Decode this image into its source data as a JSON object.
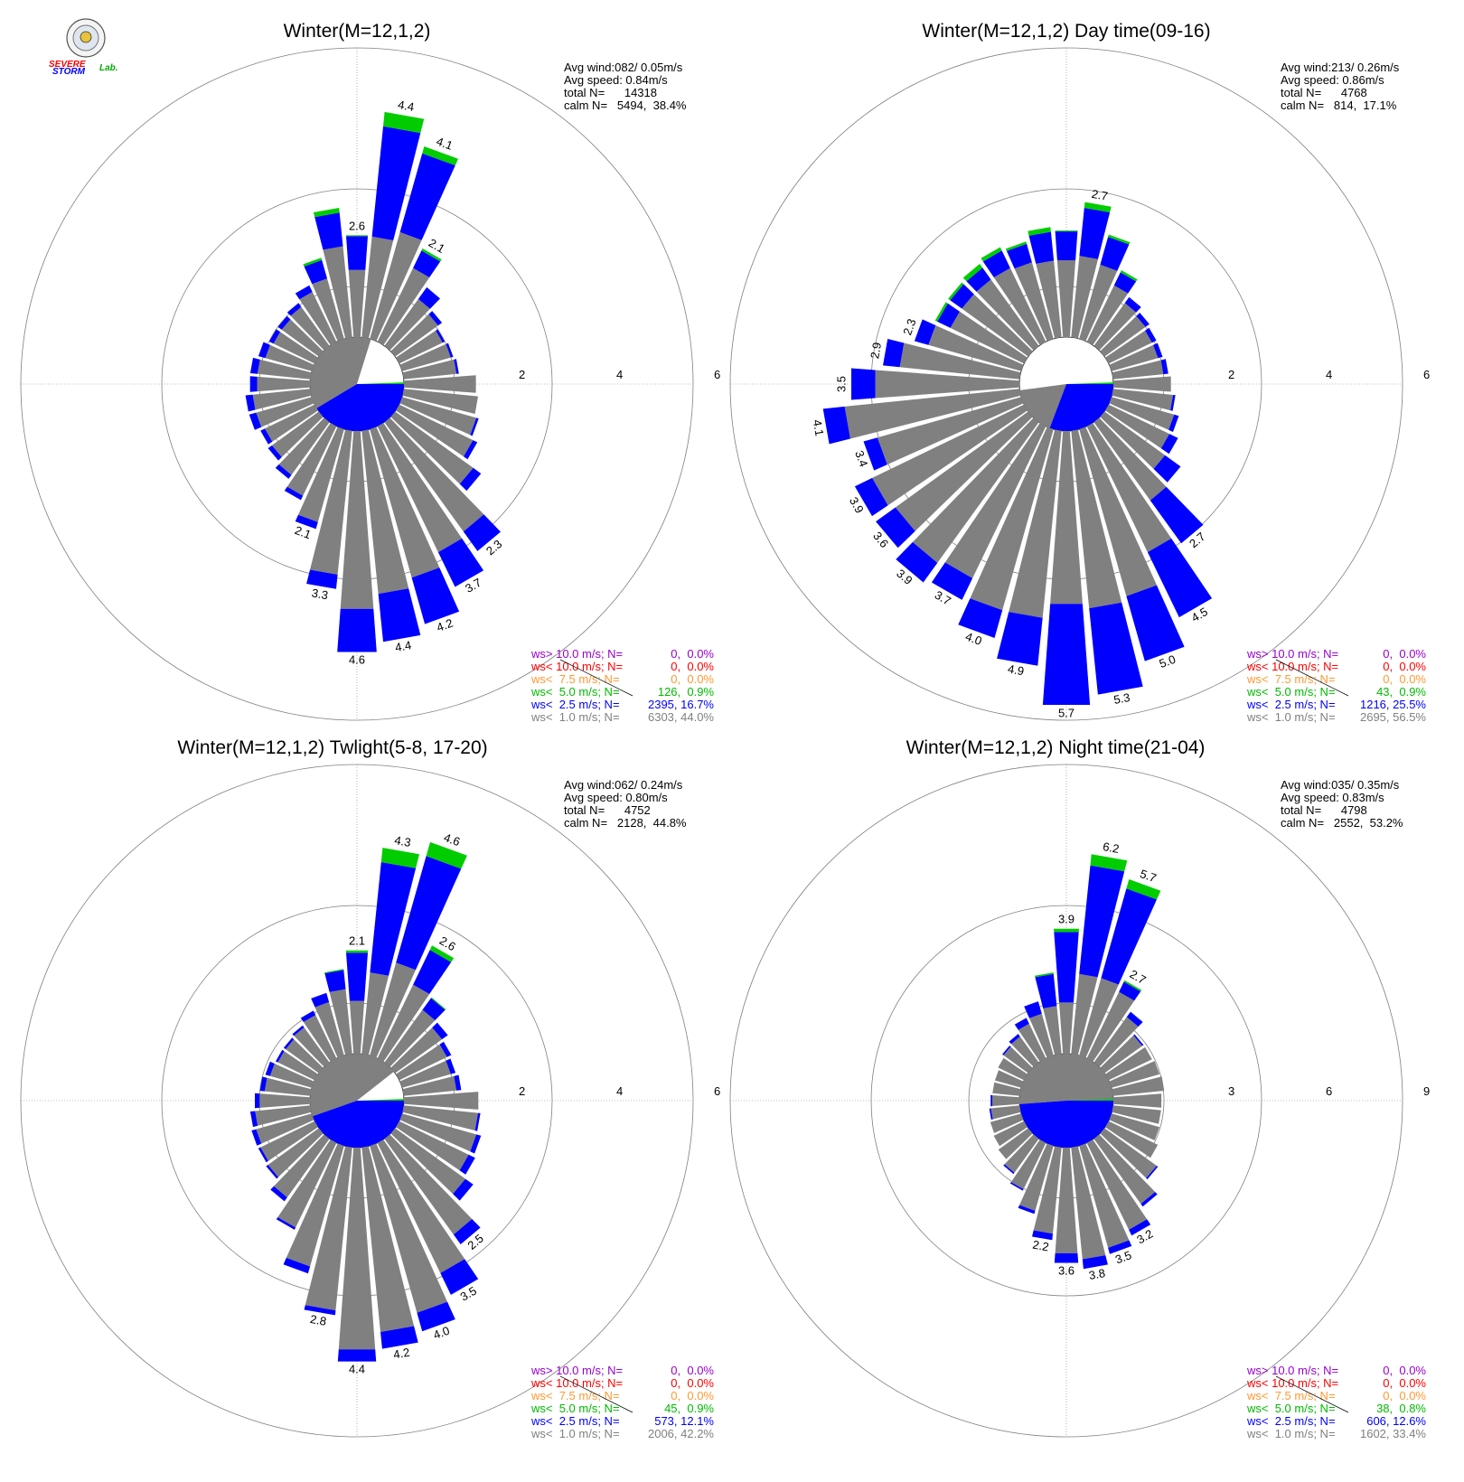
{
  "logo": {
    "text_a": "SEVERE",
    "text_b": "STORM",
    "text_c": "Lab."
  },
  "colors": {
    "gray": "#808080",
    "blue": "#0000ff",
    "green": "#00cc00",
    "orange": "#ff9933",
    "red": "#ff0000",
    "purple": "#9900cc",
    "grid": "#808080"
  },
  "legend_labels": [
    "ws> 10.0 m/s; N=",
    "ws< 10.0 m/s; N=",
    "ws<  7.5 m/s; N=",
    "ws<  5.0 m/s; N=",
    "ws<  2.5 m/s; N=",
    "ws<  1.0 m/s; N="
  ],
  "chart_data": [
    {
      "type": "wind-rose",
      "title": "Winter(M=12,1,2)",
      "stats": [
        "Avg wind:082/ 0.05m/s",
        "Avg speed: 0.84m/s",
        "total N=      14318",
        "calm N=   5494,  38.4%"
      ],
      "rings": [
        2,
        4,
        6
      ],
      "ring_labels": [
        "2",
        "4",
        "6"
      ],
      "calm_percent": 38.4,
      "legend_values": [
        "0,  0.0%",
        "0,  0.0%",
        "0,  0.0%",
        "126,  0.9%",
        "2395, 16.7%",
        "6303, 44.0%"
      ],
      "directions_deg": [
        0,
        10,
        20,
        30,
        40,
        50,
        60,
        70,
        80,
        90,
        100,
        110,
        120,
        130,
        140,
        150,
        160,
        170,
        180,
        190,
        200,
        210,
        220,
        230,
        240,
        250,
        260,
        270,
        280,
        290,
        300,
        310,
        320,
        330,
        340,
        350
      ],
      "bars": [
        {
          "g": 1.4,
          "b": 0.7,
          "gr": 0.02
        },
        {
          "g": 2.1,
          "b": 2.3,
          "gr": 0.3
        },
        {
          "g": 2.3,
          "b": 1.7,
          "gr": 0.15
        },
        {
          "g": 1.7,
          "b": 0.4,
          "gr": 0.05
        },
        {
          "g": 1.2,
          "b": 0.3,
          "gr": 0.0
        },
        {
          "g": 1.1,
          "b": 0.1,
          "gr": 0.0
        },
        {
          "g": 1.0,
          "b": 0.05,
          "gr": 0.0
        },
        {
          "g": 1.05,
          "b": 0.05,
          "gr": 0.0
        },
        {
          "g": 1.1,
          "b": 0.05,
          "gr": 0.0
        },
        {
          "g": 1.5,
          "b": 0.0,
          "gr": 0.0
        },
        {
          "g": 1.55,
          "b": 0.0,
          "gr": 0.0
        },
        {
          "g": 1.6,
          "b": 0.05,
          "gr": 0.0
        },
        {
          "g": 1.7,
          "b": 0.1,
          "gr": 0.0
        },
        {
          "g": 2.0,
          "b": 0.2,
          "gr": 0.0
        },
        {
          "g": 2.8,
          "b": 0.5,
          "gr": 0.0
        },
        {
          "g": 2.9,
          "b": 0.8,
          "gr": 0.0
        },
        {
          "g": 3.2,
          "b": 1.0,
          "gr": 0.0
        },
        {
          "g": 3.4,
          "b": 1.0,
          "gr": 0.0
        },
        {
          "g": 3.7,
          "b": 0.9,
          "gr": 0.0
        },
        {
          "g": 3.0,
          "b": 0.3,
          "gr": 0.0
        },
        {
          "g": 2.0,
          "b": 0.15,
          "gr": 0.0
        },
        {
          "g": 1.6,
          "b": 0.1,
          "gr": 0.0
        },
        {
          "g": 1.35,
          "b": 0.1,
          "gr": 0.0
        },
        {
          "g": 1.2,
          "b": 0.1,
          "gr": 0.0
        },
        {
          "g": 1.15,
          "b": 0.1,
          "gr": 0.0
        },
        {
          "g": 1.2,
          "b": 0.15,
          "gr": 0.0
        },
        {
          "g": 1.2,
          "b": 0.15,
          "gr": 0.0
        },
        {
          "g": 1.1,
          "b": 0.15,
          "gr": 0.0
        },
        {
          "g": 1.1,
          "b": 0.15,
          "gr": 0.0
        },
        {
          "g": 1.0,
          "b": 0.15,
          "gr": 0.0
        },
        {
          "g": 0.95,
          "b": 0.1,
          "gr": 0.0
        },
        {
          "g": 0.95,
          "b": 0.1,
          "gr": 0.0
        },
        {
          "g": 1.0,
          "b": 0.1,
          "gr": 0.0
        },
        {
          "g": 1.15,
          "b": 0.15,
          "gr": 0.0
        },
        {
          "g": 1.3,
          "b": 0.4,
          "gr": 0.05
        },
        {
          "g": 1.9,
          "b": 0.7,
          "gr": 0.1
        }
      ],
      "bar_labels": [
        {
          "dir": 0,
          "text": "2.6"
        },
        {
          "dir": 10,
          "text": "4.4"
        },
        {
          "dir": 20,
          "text": "4.1"
        },
        {
          "dir": 30,
          "text": "2.1"
        },
        {
          "dir": 140,
          "text": "2.3"
        },
        {
          "dir": 150,
          "text": "3.7"
        },
        {
          "dir": 160,
          "text": "4.2"
        },
        {
          "dir": 170,
          "text": "4.4"
        },
        {
          "dir": 180,
          "text": "4.6"
        },
        {
          "dir": 190,
          "text": "3.3"
        },
        {
          "dir": 200,
          "text": "2.1"
        }
      ]
    },
    {
      "type": "wind-rose",
      "title": "Winter(M=12,1,2) Day time(09-16)",
      "stats": [
        "Avg wind:213/ 0.26m/s",
        "Avg speed: 0.86m/s",
        "total N=      4768",
        "calm N=   814,  17.1%"
      ],
      "rings": [
        2,
        4,
        6
      ],
      "ring_labels": [
        "2",
        "4",
        "6"
      ],
      "calm_percent": 17.1,
      "legend_values": [
        "0,  0.0%",
        "0,  0.0%",
        "0,  0.0%",
        "43,  0.9%",
        "1216, 25.5%",
        "2695, 56.5%"
      ],
      "directions_deg": [
        0,
        10,
        20,
        30,
        40,
        50,
        60,
        70,
        80,
        90,
        100,
        110,
        120,
        130,
        140,
        150,
        160,
        170,
        180,
        190,
        200,
        210,
        220,
        230,
        240,
        250,
        260,
        270,
        280,
        290,
        300,
        310,
        320,
        330,
        340,
        350
      ],
      "bars": [
        {
          "g": 1.6,
          "b": 0.6,
          "gr": 0.02
        },
        {
          "g": 1.7,
          "b": 1.0,
          "gr": 0.12
        },
        {
          "g": 1.6,
          "b": 0.6,
          "gr": 0.05
        },
        {
          "g": 1.3,
          "b": 0.3,
          "gr": 0.05
        },
        {
          "g": 1.1,
          "b": 0.15,
          "gr": 0.0
        },
        {
          "g": 1.05,
          "b": 0.1,
          "gr": 0.0
        },
        {
          "g": 1.0,
          "b": 0.1,
          "gr": 0.0
        },
        {
          "g": 1.0,
          "b": 0.1,
          "gr": 0.0
        },
        {
          "g": 1.05,
          "b": 0.1,
          "gr": 0.0
        },
        {
          "g": 1.2,
          "b": 0.0,
          "gr": 0.0
        },
        {
          "g": 1.25,
          "b": 0.05,
          "gr": 0.0
        },
        {
          "g": 1.35,
          "b": 0.1,
          "gr": 0.0
        },
        {
          "g": 1.4,
          "b": 0.2,
          "gr": 0.0
        },
        {
          "g": 1.55,
          "b": 0.4,
          "gr": 0.0
        },
        {
          "g": 2.0,
          "b": 1.1,
          "gr": 0.0
        },
        {
          "g": 2.9,
          "b": 1.5,
          "gr": 0.0
        },
        {
          "g": 3.6,
          "b": 1.4,
          "gr": 0.0
        },
        {
          "g": 3.7,
          "b": 1.8,
          "gr": 0.0
        },
        {
          "g": 3.6,
          "b": 2.1,
          "gr": 0.0
        },
        {
          "g": 3.9,
          "b": 1.0,
          "gr": 0.0
        },
        {
          "g": 3.9,
          "b": 0.6,
          "gr": 0.0
        },
        {
          "g": 3.5,
          "b": 0.5,
          "gr": 0.0
        },
        {
          "g": 3.6,
          "b": 0.5,
          "gr": 0.0
        },
        {
          "g": 3.4,
          "b": 0.5,
          "gr": 0.0
        },
        {
          "g": 3.5,
          "b": 0.4,
          "gr": 0.0
        },
        {
          "g": 3.1,
          "b": 0.3,
          "gr": 0.0
        },
        {
          "g": 3.65,
          "b": 0.45,
          "gr": 0.0
        },
        {
          "g": 3.0,
          "b": 0.5,
          "gr": 0.0
        },
        {
          "g": 2.5,
          "b": 0.35,
          "gr": 0.0
        },
        {
          "g": 2.0,
          "b": 0.3,
          "gr": 0.0
        },
        {
          "g": 1.7,
          "b": 0.3,
          "gr": 0.05
        },
        {
          "g": 1.7,
          "b": 0.3,
          "gr": 0.05
        },
        {
          "g": 1.7,
          "b": 0.3,
          "gr": 0.1
        },
        {
          "g": 1.7,
          "b": 0.4,
          "gr": 0.08
        },
        {
          "g": 1.65,
          "b": 0.4,
          "gr": 0.05
        },
        {
          "g": 1.6,
          "b": 0.6,
          "gr": 0.1
        }
      ],
      "bar_labels": [
        {
          "dir": 10,
          "text": "2.7"
        },
        {
          "dir": 140,
          "text": "2.7"
        },
        {
          "dir": 150,
          "text": "4.5"
        },
        {
          "dir": 160,
          "text": "5.0"
        },
        {
          "dir": 170,
          "text": "5.3"
        },
        {
          "dir": 180,
          "text": "5.7"
        },
        {
          "dir": 190,
          "text": "4.9"
        },
        {
          "dir": 200,
          "text": "4.0"
        },
        {
          "dir": 210,
          "text": "3.7"
        },
        {
          "dir": 220,
          "text": "3.9"
        },
        {
          "dir": 230,
          "text": "3.6"
        },
        {
          "dir": 240,
          "text": "3.9"
        },
        {
          "dir": 250,
          "text": "3.4"
        },
        {
          "dir": 260,
          "text": "4.1"
        },
        {
          "dir": 270,
          "text": "3.5"
        },
        {
          "dir": 280,
          "text": "2.9"
        },
        {
          "dir": 290,
          "text": "2.3"
        }
      ]
    },
    {
      "type": "wind-rose",
      "title": "Winter(M=12,1,2) Twlight(5-8, 17-20)",
      "stats": [
        "Avg wind:062/ 0.24m/s",
        "Avg speed: 0.80m/s",
        "total N=      4752",
        "calm N=   2128,  44.8%"
      ],
      "rings": [
        2,
        4,
        6
      ],
      "ring_labels": [
        "2",
        "4",
        "6"
      ],
      "calm_percent": 44.8,
      "legend_values": [
        "0,  0.0%",
        "0,  0.0%",
        "0,  0.0%",
        "45,  0.9%",
        "573, 12.1%",
        "2006, 42.2%"
      ],
      "directions_deg": [
        0,
        10,
        20,
        30,
        40,
        50,
        60,
        70,
        80,
        90,
        100,
        110,
        120,
        130,
        140,
        150,
        160,
        170,
        180,
        190,
        200,
        210,
        220,
        230,
        240,
        250,
        260,
        270,
        280,
        290,
        300,
        310,
        320,
        330,
        340,
        350
      ],
      "bars": [
        {
          "g": 1.1,
          "b": 1.0,
          "gr": 0.05
        },
        {
          "g": 1.7,
          "b": 2.3,
          "gr": 0.3
        },
        {
          "g": 2.0,
          "b": 2.3,
          "gr": 0.3
        },
        {
          "g": 1.7,
          "b": 0.8,
          "gr": 0.1
        },
        {
          "g": 1.35,
          "b": 0.3,
          "gr": 0.02
        },
        {
          "g": 1.2,
          "b": 0.15,
          "gr": 0.0
        },
        {
          "g": 1.1,
          "b": 0.1,
          "gr": 0.0
        },
        {
          "g": 1.05,
          "b": 0.1,
          "gr": 0.0
        },
        {
          "g": 1.1,
          "b": 0.1,
          "gr": 0.0
        },
        {
          "g": 1.55,
          "b": 0.0,
          "gr": 0.0
        },
        {
          "g": 1.55,
          "b": 0.05,
          "gr": 0.0
        },
        {
          "g": 1.6,
          "b": 0.1,
          "gr": 0.0
        },
        {
          "g": 1.6,
          "b": 0.15,
          "gr": 0.0
        },
        {
          "g": 1.8,
          "b": 0.2,
          "gr": 0.0
        },
        {
          "g": 2.45,
          "b": 0.25,
          "gr": 0.0
        },
        {
          "g": 3.0,
          "b": 0.5,
          "gr": 0.0
        },
        {
          "g": 3.6,
          "b": 0.4,
          "gr": 0.0
        },
        {
          "g": 3.85,
          "b": 0.35,
          "gr": 0.0
        },
        {
          "g": 4.2,
          "b": 0.25,
          "gr": 0.0
        },
        {
          "g": 3.4,
          "b": 0.1,
          "gr": 0.0
        },
        {
          "g": 2.6,
          "b": 0.15,
          "gr": 0.0
        },
        {
          "g": 1.95,
          "b": 0.05,
          "gr": 0.0
        },
        {
          "g": 1.5,
          "b": 0.1,
          "gr": 0.0
        },
        {
          "g": 1.3,
          "b": 0.05,
          "gr": 0.0
        },
        {
          "g": 1.25,
          "b": 0.05,
          "gr": 0.0
        },
        {
          "g": 1.2,
          "b": 0.1,
          "gr": 0.0
        },
        {
          "g": 1.15,
          "b": 0.1,
          "gr": 0.0
        },
        {
          "g": 1.05,
          "b": 0.1,
          "gr": 0.0
        },
        {
          "g": 0.95,
          "b": 0.1,
          "gr": 0.0
        },
        {
          "g": 0.9,
          "b": 0.1,
          "gr": 0.0
        },
        {
          "g": 0.85,
          "b": 0.05,
          "gr": 0.0
        },
        {
          "g": 0.85,
          "b": 0.05,
          "gr": 0.0
        },
        {
          "g": 0.9,
          "b": 0.05,
          "gr": 0.0
        },
        {
          "g": 1.0,
          "b": 0.1,
          "gr": 0.0
        },
        {
          "g": 1.15,
          "b": 0.2,
          "gr": 0.0
        },
        {
          "g": 1.35,
          "b": 0.4,
          "gr": 0.02
        }
      ],
      "bar_labels": [
        {
          "dir": 0,
          "text": "2.1"
        },
        {
          "dir": 10,
          "text": "4.3"
        },
        {
          "dir": 20,
          "text": "4.6"
        },
        {
          "dir": 30,
          "text": "2.6"
        },
        {
          "dir": 140,
          "text": "2.5"
        },
        {
          "dir": 150,
          "text": "3.5"
        },
        {
          "dir": 160,
          "text": "4.0"
        },
        {
          "dir": 170,
          "text": "4.2"
        },
        {
          "dir": 180,
          "text": "4.4"
        },
        {
          "dir": 190,
          "text": "2.8"
        }
      ]
    },
    {
      "type": "wind-rose",
      "title": "Winter(M=12,1,2) Night time(21-04)",
      "stats": [
        "Avg wind:035/ 0.35m/s",
        "Avg speed: 0.83m/s",
        "total N=      4798",
        "calm N=   2552,  53.2%"
      ],
      "rings": [
        3,
        6,
        9
      ],
      "ring_labels": [
        "3",
        "6",
        "9"
      ],
      "calm_percent": 53.2,
      "legend_values": [
        "0,  0.0%",
        "0,  0.0%",
        "0,  0.0%",
        "38,  0.8%",
        "606, 12.6%",
        "1602, 33.4%"
      ],
      "directions_deg": [
        0,
        10,
        20,
        30,
        40,
        50,
        60,
        70,
        80,
        90,
        100,
        110,
        120,
        130,
        140,
        150,
        160,
        170,
        180,
        190,
        200,
        210,
        220,
        230,
        240,
        250,
        260,
        270,
        280,
        290,
        300,
        310,
        320,
        330,
        340,
        350
      ],
      "bars": [
        {
          "g": 1.6,
          "b": 2.2,
          "gr": 0.1
        },
        {
          "g": 2.5,
          "b": 3.4,
          "gr": 0.35
        },
        {
          "g": 2.5,
          "b": 2.9,
          "gr": 0.3
        },
        {
          "g": 2.3,
          "b": 0.35,
          "gr": 0.05
        },
        {
          "g": 1.75,
          "b": 0.2,
          "gr": 0.0
        },
        {
          "g": 1.45,
          "b": 0.05,
          "gr": 0.0
        },
        {
          "g": 1.5,
          "b": 0.0,
          "gr": 0.0
        },
        {
          "g": 1.55,
          "b": 0.0,
          "gr": 0.0
        },
        {
          "g": 1.6,
          "b": 0.0,
          "gr": 0.0
        },
        {
          "g": 1.5,
          "b": 0.0,
          "gr": 0.0
        },
        {
          "g": 1.5,
          "b": 0.0,
          "gr": 0.0
        },
        {
          "g": 1.55,
          "b": 0.0,
          "gr": 0.0
        },
        {
          "g": 1.7,
          "b": 0.0,
          "gr": 0.0
        },
        {
          "g": 2.0,
          "b": 0.05,
          "gr": 0.0
        },
        {
          "g": 2.5,
          "b": 0.1,
          "gr": 0.0
        },
        {
          "g": 3.0,
          "b": 0.2,
          "gr": 0.0
        },
        {
          "g": 3.3,
          "b": 0.2,
          "gr": 0.0
        },
        {
          "g": 3.5,
          "b": 0.3,
          "gr": 0.0
        },
        {
          "g": 3.3,
          "b": 0.3,
          "gr": 0.0
        },
        {
          "g": 2.7,
          "b": 0.2,
          "gr": 0.0
        },
        {
          "g": 2.1,
          "b": 0.1,
          "gr": 0.0
        },
        {
          "g": 1.6,
          "b": 0.05,
          "gr": 0.0
        },
        {
          "g": 1.3,
          "b": 0.05,
          "gr": 0.0
        },
        {
          "g": 1.15,
          "b": 0.0,
          "gr": 0.0
        },
        {
          "g": 1.05,
          "b": 0.0,
          "gr": 0.0
        },
        {
          "g": 1.0,
          "b": 0.0,
          "gr": 0.0
        },
        {
          "g": 0.9,
          "b": 0.05,
          "gr": 0.0
        },
        {
          "g": 0.85,
          "b": 0.05,
          "gr": 0.0
        },
        {
          "g": 0.85,
          "b": 0.0,
          "gr": 0.0
        },
        {
          "g": 0.85,
          "b": 0.0,
          "gr": 0.0
        },
        {
          "g": 0.9,
          "b": 0.0,
          "gr": 0.0
        },
        {
          "g": 0.95,
          "b": 0.05,
          "gr": 0.0
        },
        {
          "g": 1.0,
          "b": 0.1,
          "gr": 0.0
        },
        {
          "g": 1.2,
          "b": 0.2,
          "gr": 0.0
        },
        {
          "g": 1.35,
          "b": 0.4,
          "gr": 0.0
        },
        {
          "g": 1.5,
          "b": 1.0,
          "gr": 0.05
        }
      ],
      "bar_labels": [
        {
          "dir": 0,
          "text": "3.9"
        },
        {
          "dir": 10,
          "text": "6.2"
        },
        {
          "dir": 20,
          "text": "5.7"
        },
        {
          "dir": 30,
          "text": "2.7"
        },
        {
          "dir": 150,
          "text": "3.2"
        },
        {
          "dir": 160,
          "text": "3.5"
        },
        {
          "dir": 170,
          "text": "3.8"
        },
        {
          "dir": 180,
          "text": "3.6"
        },
        {
          "dir": 190,
          "text": "2.2"
        }
      ]
    }
  ]
}
